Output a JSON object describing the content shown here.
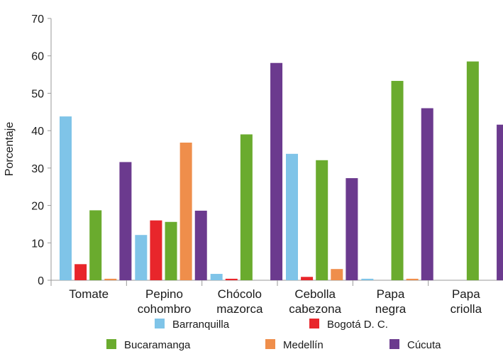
{
  "chart_data": {
    "type": "bar",
    "title": "",
    "xlabel": "",
    "ylabel": "Porcentaje",
    "ylim": [
      0,
      70
    ],
    "yticks": [
      0,
      10,
      20,
      30,
      40,
      50,
      60,
      70
    ],
    "grid": false,
    "legend_position": "bottom",
    "categories": [
      [
        "Tomate"
      ],
      [
        "Pepino",
        "cohombro"
      ],
      [
        "Chócolo",
        "mazorca"
      ],
      [
        "Cebolla",
        "cabezona"
      ],
      [
        "Papa",
        "negra"
      ],
      [
        "Papa",
        "criolla"
      ]
    ],
    "series": [
      {
        "name": "Barranquilla",
        "color": "#7fc4e8",
        "values": [
          43.8,
          12.1,
          1.7,
          33.8,
          0.4,
          0
        ]
      },
      {
        "name": "Bogotá D. C.",
        "color": "#e8262b",
        "values": [
          4.3,
          16.0,
          0.4,
          0.9,
          0,
          0
        ]
      },
      {
        "name": "Bucaramanga",
        "color": "#6aab2e",
        "values": [
          18.7,
          15.6,
          39.0,
          32.1,
          53.3,
          58.5
        ]
      },
      {
        "name": "Medellín",
        "color": "#ef8e4b",
        "values": [
          0.4,
          36.8,
          0,
          3.0,
          0.4,
          0
        ]
      },
      {
        "name": "Cúcuta",
        "color": "#6b3a8e",
        "values": [
          31.6,
          18.6,
          58.1,
          27.3,
          46.0,
          41.6
        ]
      }
    ]
  }
}
